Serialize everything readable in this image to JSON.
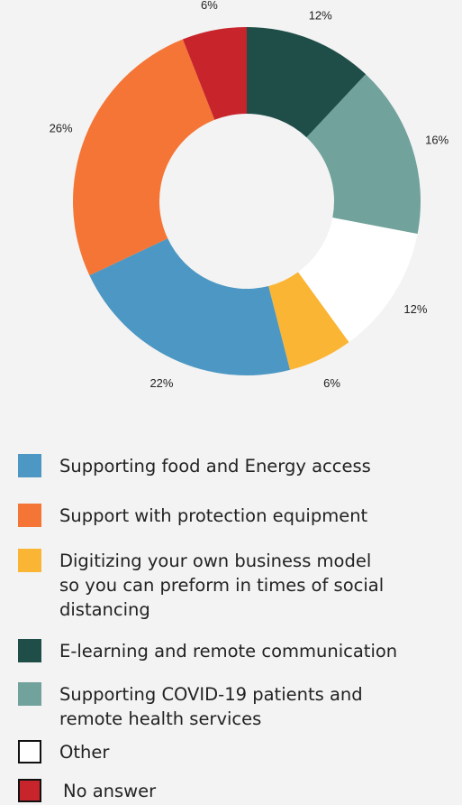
{
  "chart_data": {
    "type": "donut",
    "title": "",
    "values": [
      12,
      16,
      12,
      6,
      22,
      26,
      6
    ],
    "slice_labels": [
      "12%",
      "16%",
      "12%",
      "6%",
      "22%",
      "26%",
      "6%"
    ],
    "categories": [
      "E-learning and remote communication",
      "Supporting COVID-19 patients and remote health services",
      "Other",
      "Digitizing your own business model so you can preform in times of social distancing",
      "Supporting food and Energy access",
      "Support with protection equipment",
      "No answer"
    ],
    "colors": [
      "#1f4e48",
      "#71a29b",
      "#ffffff",
      "#fbb534",
      "#4c97c3",
      "#f47535",
      "#c8242b"
    ],
    "units": "%"
  },
  "legend": {
    "items": [
      {
        "label": "Supporting food and Energy access",
        "color": "#4c97c3"
      },
      {
        "label": "Support with protection equipment",
        "color": "#f47535"
      },
      {
        "label": "Digitizing your own business model\nso you can preform in times of social\ndistancing",
        "color": "#fbb534"
      },
      {
        "label": "E-learning and remote communication",
        "color": "#1f4e48"
      },
      {
        "label": "Supporting COVID-19 patients and\nremote health services",
        "color": "#71a29b"
      },
      {
        "label": "Other",
        "color": "#ffffff",
        "outlined": true
      },
      {
        "label": "No answer",
        "color": "#c8242b",
        "outlined": true
      }
    ]
  }
}
